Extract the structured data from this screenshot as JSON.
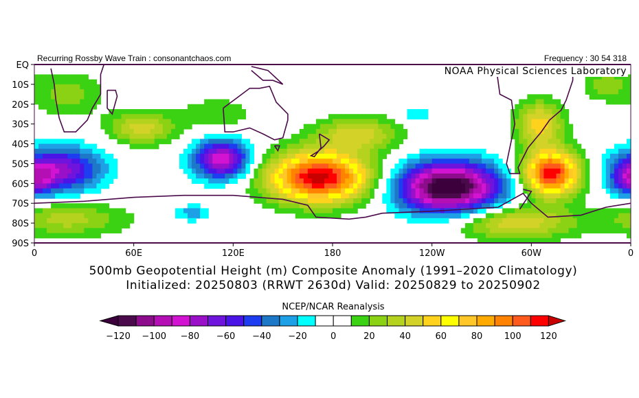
{
  "header": {
    "left": "Recurring Rossby Wave Train : consonantchaos.com",
    "right": "Frequency : 30 54 318",
    "lab": "NOAA Physical Sciences Laboratory"
  },
  "title": {
    "line1": "500mb Geopotential Height (m) Composite Anomaly (1991–2020 Climatology)",
    "line2": "Initialized: 20250803 (RRWT 2630d) Valid: 20250829 to 20250902"
  },
  "colorbar": {
    "title": "NCEP/NCAR Reanalysis",
    "labels": [
      "−120",
      "−100",
      "−80",
      "−60",
      "−40",
      "−20",
      "0",
      "20",
      "40",
      "60",
      "80",
      "100",
      "120"
    ],
    "colors": [
      "#4b0a4b",
      "#8c0c8c",
      "#b40fb4",
      "#d214d2",
      "#9a10c8",
      "#6e14dc",
      "#4b14e6",
      "#1e3cf0",
      "#1e78c8",
      "#1ea0e6",
      "#00ffff",
      "#ffffff",
      "#ffffff",
      "#3cd214",
      "#8cd214",
      "#b4d21e",
      "#d2d228",
      "#ffd21e",
      "#ffff00",
      "#ffc828",
      "#ffaa00",
      "#ff8200",
      "#ff5a1e",
      "#ff0000"
    ],
    "low_color": "#3c003c",
    "high_color": "#c80000"
  },
  "chart_data": {
    "type": "heatmap",
    "variable": "500mb geopotential height composite anomaly (m)",
    "x_range_lon_east": [
      0,
      360
    ],
    "y_range_lat_south": [
      0,
      90
    ],
    "x_ticks": [
      "0",
      "60E",
      "120E",
      "180",
      "120W",
      "60W",
      "0"
    ],
    "y_ticks": [
      "EQ",
      "10S",
      "20S",
      "30S",
      "40S",
      "50S",
      "60S",
      "70S",
      "80S",
      "90S"
    ],
    "value_range": [
      -120,
      120
    ],
    "anomaly_centers": [
      {
        "lon": 172,
        "lat": -57,
        "value": 125,
        "sx": 22,
        "sy": 9
      },
      {
        "lon": 250,
        "lat": -62,
        "value": -135,
        "sx": 22,
        "sy": 9
      },
      {
        "lon": 312,
        "lat": -55,
        "value": 120,
        "sx": 12,
        "sy": 8
      },
      {
        "lon": 113,
        "lat": -48,
        "value": -90,
        "sx": 12,
        "sy": 7
      },
      {
        "lon": 15,
        "lat": -53,
        "value": -75,
        "sx": 18,
        "sy": 8
      },
      {
        "lon": 360,
        "lat": -58,
        "value": -50,
        "sx": 8,
        "sy": 6
      },
      {
        "lon": 65,
        "lat": -32,
        "value": 45,
        "sx": 14,
        "sy": 6
      },
      {
        "lon": 20,
        "lat": -15,
        "value": 25,
        "sx": 15,
        "sy": 8
      },
      {
        "lon": 110,
        "lat": -25,
        "value": 20,
        "sx": 15,
        "sy": 6
      },
      {
        "lon": 195,
        "lat": -35,
        "value": 45,
        "sx": 18,
        "sy": 6
      },
      {
        "lon": 305,
        "lat": -30,
        "value": 55,
        "sx": 10,
        "sy": 8
      },
      {
        "lon": 20,
        "lat": -78,
        "value": 35,
        "sx": 25,
        "sy": 6
      },
      {
        "lon": 290,
        "lat": -80,
        "value": 50,
        "sx": 25,
        "sy": 6
      },
      {
        "lon": 95,
        "lat": -75,
        "value": -25,
        "sx": 8,
        "sy": 3
      },
      {
        "lon": 345,
        "lat": -10,
        "value": 25,
        "sx": 10,
        "sy": 6
      },
      {
        "lon": 230,
        "lat": -25,
        "value": -22,
        "sx": 6,
        "sy": 3
      }
    ]
  }
}
